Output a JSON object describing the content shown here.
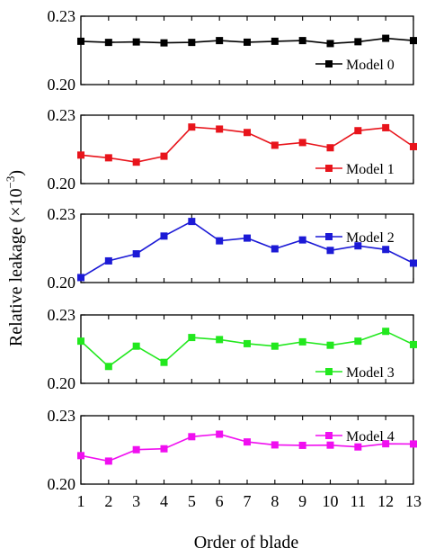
{
  "chart_data": {
    "type": "line",
    "xlabel": "Order of blade",
    "ylabel": "Relative leakage (×10",
    "ylabel_sup": "−3",
    "ylabel_close": ")",
    "x": [
      1,
      2,
      3,
      4,
      5,
      6,
      7,
      8,
      9,
      10,
      11,
      12,
      13
    ],
    "x_tick_labels": [
      "1",
      "2",
      "3",
      "4",
      "5",
      "6",
      "7",
      "8",
      "9",
      "10",
      "11",
      "12",
      "13"
    ],
    "ylim": [
      0.2,
      0.23
    ],
    "y_tick_labels": [
      "0.20",
      "0.23"
    ],
    "grid": false,
    "panels": [
      {
        "legend": "Model 0",
        "legend_position": "right",
        "color": "#000000",
        "values": [
          0.219,
          0.2185,
          0.2187,
          0.2183,
          0.2185,
          0.2193,
          0.2186,
          0.219,
          0.2193,
          0.218,
          0.2188,
          0.2203,
          0.2193
        ]
      },
      {
        "legend": "Model 1",
        "legend_position": "bottom-right",
        "color": "#e8141b",
        "values": [
          0.2125,
          0.2113,
          0.2094,
          0.212,
          0.2248,
          0.2239,
          0.2224,
          0.2168,
          0.218,
          0.2157,
          0.2232,
          0.2245,
          0.2162
        ]
      },
      {
        "legend": "Model 2",
        "legend_position": "top-right",
        "color": "#1c1ad6",
        "values": [
          0.2022,
          0.2095,
          0.2126,
          0.2204,
          0.2268,
          0.2183,
          0.2195,
          0.2148,
          0.2187,
          0.2141,
          0.2161,
          0.2145,
          0.2085
        ]
      },
      {
        "legend": "Model 3",
        "legend_position": "bottom-right",
        "color": "#22e81e",
        "values": [
          0.2185,
          0.2074,
          0.2163,
          0.2092,
          0.2201,
          0.2192,
          0.2174,
          0.2163,
          0.2182,
          0.2167,
          0.2185,
          0.2228,
          0.217
        ]
      },
      {
        "legend": "Model 4",
        "legend_position": "top-right",
        "color": "#f00ff0",
        "values": [
          0.2125,
          0.2101,
          0.2151,
          0.2155,
          0.2208,
          0.2219,
          0.2185,
          0.2172,
          0.217,
          0.2171,
          0.2163,
          0.2177,
          0.2176
        ]
      }
    ]
  }
}
